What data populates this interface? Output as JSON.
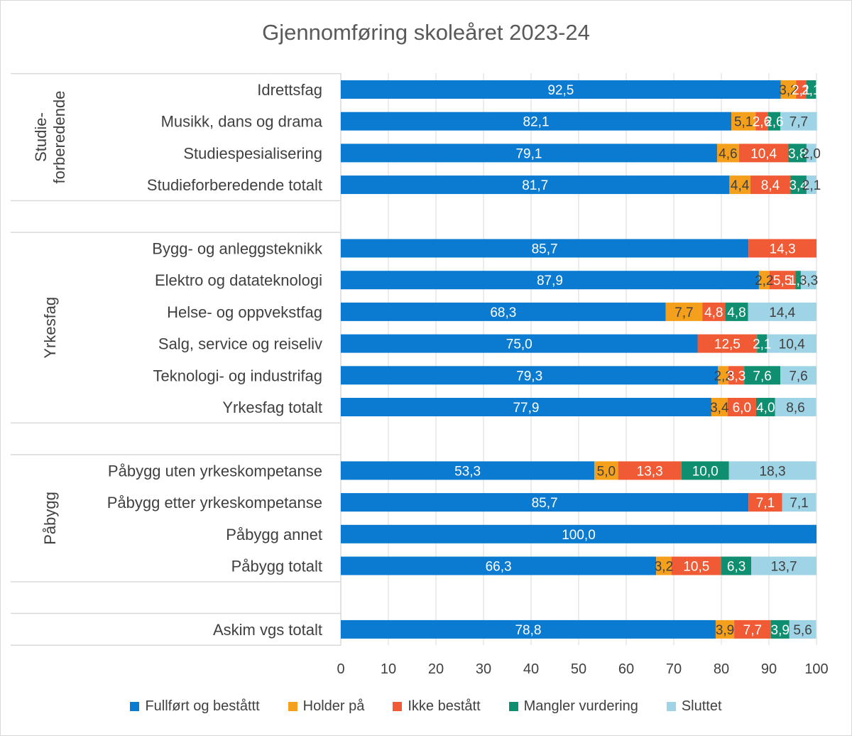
{
  "chart_data": {
    "type": "bar",
    "orientation": "horizontal",
    "stacked": true,
    "title": "Gjennomføring skoleåret 2023-24",
    "xlim": [
      0,
      100
    ],
    "x_ticks": [
      "0",
      "10",
      "20",
      "30",
      "40",
      "50",
      "60",
      "70",
      "80",
      "90",
      "100"
    ],
    "grid": true,
    "legend_position": "bottom",
    "series": [
      {
        "name": "Fullført og beståttt",
        "color": "#0a7bd0"
      },
      {
        "name": "Holder på",
        "color": "#f5a01c"
      },
      {
        "name": "Ikke bestått",
        "color": "#f05a35"
      },
      {
        "name": "Mangler vurdering",
        "color": "#0f8f6f"
      },
      {
        "name": "Sluttet",
        "color": "#9fd3e6"
      }
    ],
    "groups": [
      {
        "name": "Studie-\nforberedende",
        "name_lines": [
          "Studie-",
          "forberedende"
        ],
        "rows": [
          {
            "label": "Idrettsfag",
            "values": [
              92.5,
              3.2,
              2.1,
              2.1,
              0
            ],
            "value_labels": [
              "92,5",
              "3,2",
              "2,1",
              "2,1",
              ""
            ]
          },
          {
            "label": "Musikk, dans og drama",
            "values": [
              82.1,
              5.1,
              2.6,
              2.6,
              7.7
            ],
            "value_labels": [
              "82,1",
              "5,1",
              "2,6",
              "2,6",
              "7,7"
            ]
          },
          {
            "label": "Studiespesialisering",
            "values": [
              79.1,
              4.6,
              10.4,
              3.8,
              2.0
            ],
            "value_labels": [
              "79,1",
              "4,6",
              "10,4",
              "3,8",
              "2,0"
            ]
          },
          {
            "label": "Studieforberedende totalt",
            "values": [
              81.7,
              4.4,
              8.4,
              3.4,
              2.1
            ],
            "value_labels": [
              "81,7",
              "4,4",
              "8,4",
              "3,4",
              "2,1"
            ]
          }
        ]
      },
      {
        "name": "Yrkesfag",
        "name_lines": [
          "Yrkesfag"
        ],
        "rows": [
          {
            "label": "Bygg- og anleggsteknikk",
            "values": [
              85.7,
              0,
              14.3,
              0,
              0
            ],
            "value_labels": [
              "85,7",
              "",
              "14,3",
              "",
              ""
            ]
          },
          {
            "label": "Elektro og datateknologi",
            "values": [
              87.9,
              2.2,
              5.5,
              1.1,
              3.3
            ],
            "value_labels": [
              "87,9",
              "2,2",
              "5,5",
              "1,1",
              "3,3"
            ]
          },
          {
            "label": "Helse- og oppvekstfag",
            "values": [
              68.3,
              7.7,
              4.8,
              4.8,
              14.4
            ],
            "value_labels": [
              "68,3",
              "7,7",
              "4,8",
              "4,8",
              "14,4"
            ]
          },
          {
            "label": "Salg, service og reiseliv",
            "values": [
              75.0,
              0,
              12.5,
              2.1,
              10.4
            ],
            "value_labels": [
              "75,0",
              "",
              "12,5",
              "2,1",
              "10,4"
            ]
          },
          {
            "label": "Teknologi- og industrifag",
            "values": [
              79.3,
              2.2,
              3.3,
              7.6,
              7.6
            ],
            "value_labels": [
              "79,3",
              "2,2",
              "3,3",
              "7,6",
              "7,6"
            ]
          },
          {
            "label": "Yrkesfag totalt",
            "values": [
              77.9,
              3.4,
              6.0,
              4.0,
              8.6
            ],
            "value_labels": [
              "77,9",
              "3,4",
              "6,0",
              "4,0",
              "8,6"
            ]
          }
        ]
      },
      {
        "name": "Påbygg",
        "name_lines": [
          "Påbygg"
        ],
        "rows": [
          {
            "label": "Påbygg uten yrkeskompetanse",
            "values": [
              53.3,
              5.0,
              13.3,
              10.0,
              18.3
            ],
            "value_labels": [
              "53,3",
              "5,0",
              "13,3",
              "10,0",
              "18,3"
            ]
          },
          {
            "label": "Påbygg etter yrkeskompetanse",
            "values": [
              85.7,
              0,
              7.1,
              0,
              7.1
            ],
            "value_labels": [
              "85,7",
              "",
              "7,1",
              "",
              "7,1"
            ]
          },
          {
            "label": "Påbygg annet",
            "values": [
              100.0,
              0,
              0,
              0,
              0
            ],
            "value_labels": [
              "100,0",
              "",
              "",
              "",
              ""
            ]
          },
          {
            "label": "Påbygg totalt",
            "values": [
              66.3,
              3.2,
              10.5,
              6.3,
              13.7
            ],
            "value_labels": [
              "66,3",
              "3,2",
              "10,5",
              "6,3",
              "13,7"
            ]
          }
        ]
      },
      {
        "name": "",
        "name_lines": [],
        "rows": [
          {
            "label": "Askim vgs totalt",
            "values": [
              78.8,
              3.9,
              7.7,
              3.9,
              5.6
            ],
            "value_labels": [
              "78,8",
              "3,9",
              "7,7",
              "3,9",
              "5,6"
            ]
          }
        ]
      }
    ]
  }
}
